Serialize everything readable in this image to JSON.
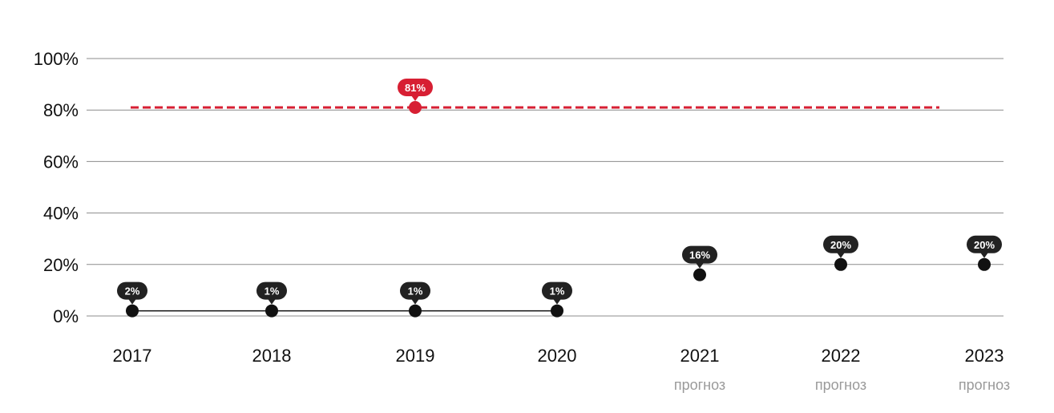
{
  "chart_data": {
    "type": "line",
    "ylim": [
      0,
      100
    ],
    "y_ticks": [
      "0%",
      "20%",
      "40%",
      "60%",
      "80%",
      "100%"
    ],
    "y_tick_values": [
      0,
      20,
      40,
      60,
      80,
      100
    ],
    "categories": [
      "2017",
      "2018",
      "2019",
      "2020",
      "2021",
      "2022",
      "2023"
    ],
    "category_notes": [
      "",
      "",
      "",
      "",
      "прогноз",
      "прогноз",
      "прогноз"
    ],
    "series": [
      {
        "values": [
          2,
          1,
          1,
          1,
          16,
          20,
          20
        ],
        "labels": [
          "2%",
          "1%",
          "1%",
          "1%",
          "16%",
          "20%",
          "20%"
        ],
        "connected_through_index": 3,
        "color": "#111111"
      }
    ],
    "reference_line": {
      "value": 81,
      "label": "81%",
      "label_category_index": 2,
      "color": "#d71f33",
      "style": "dashed"
    },
    "grid": true,
    "legend": "none"
  }
}
